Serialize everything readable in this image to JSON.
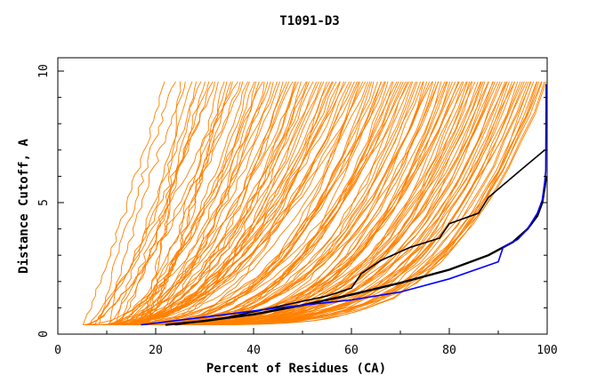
{
  "chart_data": {
    "type": "line",
    "title": "T1091-D3",
    "xlabel": "Percent of Residues (CA)",
    "ylabel": "Distance Cutoff, A",
    "xlim": [
      0,
      100
    ],
    "ylim": [
      0,
      10
    ],
    "x_ticks": [
      "0",
      "20",
      "40",
      "60",
      "80",
      "100"
    ],
    "y_ticks": [
      "0",
      "5",
      "10"
    ],
    "grid": false,
    "colors": {
      "background_models": "#ff8000",
      "highlight_black": "#000000",
      "highlight_blue": "#0000ff",
      "axis": "#000000"
    },
    "series": [
      {
        "color": "#000000",
        "points": [
          [
            22,
            0.35
          ],
          [
            30,
            0.5
          ],
          [
            40,
            0.75
          ],
          [
            50,
            1.1
          ],
          [
            60,
            1.5
          ],
          [
            70,
            1.95
          ],
          [
            80,
            2.45
          ],
          [
            88,
            3.0
          ],
          [
            93,
            3.5
          ],
          [
            96,
            4.0
          ],
          [
            98,
            4.5
          ],
          [
            99,
            5.0
          ],
          [
            99.5,
            5.6
          ],
          [
            99.8,
            6.0
          ]
        ]
      },
      {
        "color": "#000000",
        "points": [
          [
            24,
            0.35
          ],
          [
            35,
            0.65
          ],
          [
            45,
            1.05
          ],
          [
            55,
            1.45
          ],
          [
            60,
            1.75
          ],
          [
            62,
            2.3
          ],
          [
            66,
            2.8
          ],
          [
            72,
            3.3
          ],
          [
            78,
            3.65
          ],
          [
            80,
            4.2
          ],
          [
            86,
            4.6
          ],
          [
            88,
            5.2
          ],
          [
            95,
            6.3
          ],
          [
            99.5,
            7.0
          ]
        ]
      },
      {
        "color": "#0000ff",
        "points": [
          [
            17,
            0.35
          ],
          [
            30,
            0.65
          ],
          [
            45,
            1.0
          ],
          [
            60,
            1.3
          ],
          [
            70,
            1.6
          ],
          [
            80,
            2.1
          ],
          [
            90,
            2.75
          ],
          [
            91,
            3.3
          ],
          [
            94,
            3.6
          ],
          [
            96,
            4.0
          ],
          [
            98,
            4.6
          ],
          [
            99,
            5.1
          ],
          [
            99.5,
            5.8
          ],
          [
            99.7,
            6.2
          ],
          [
            99.8,
            9.5
          ]
        ]
      }
    ]
  }
}
